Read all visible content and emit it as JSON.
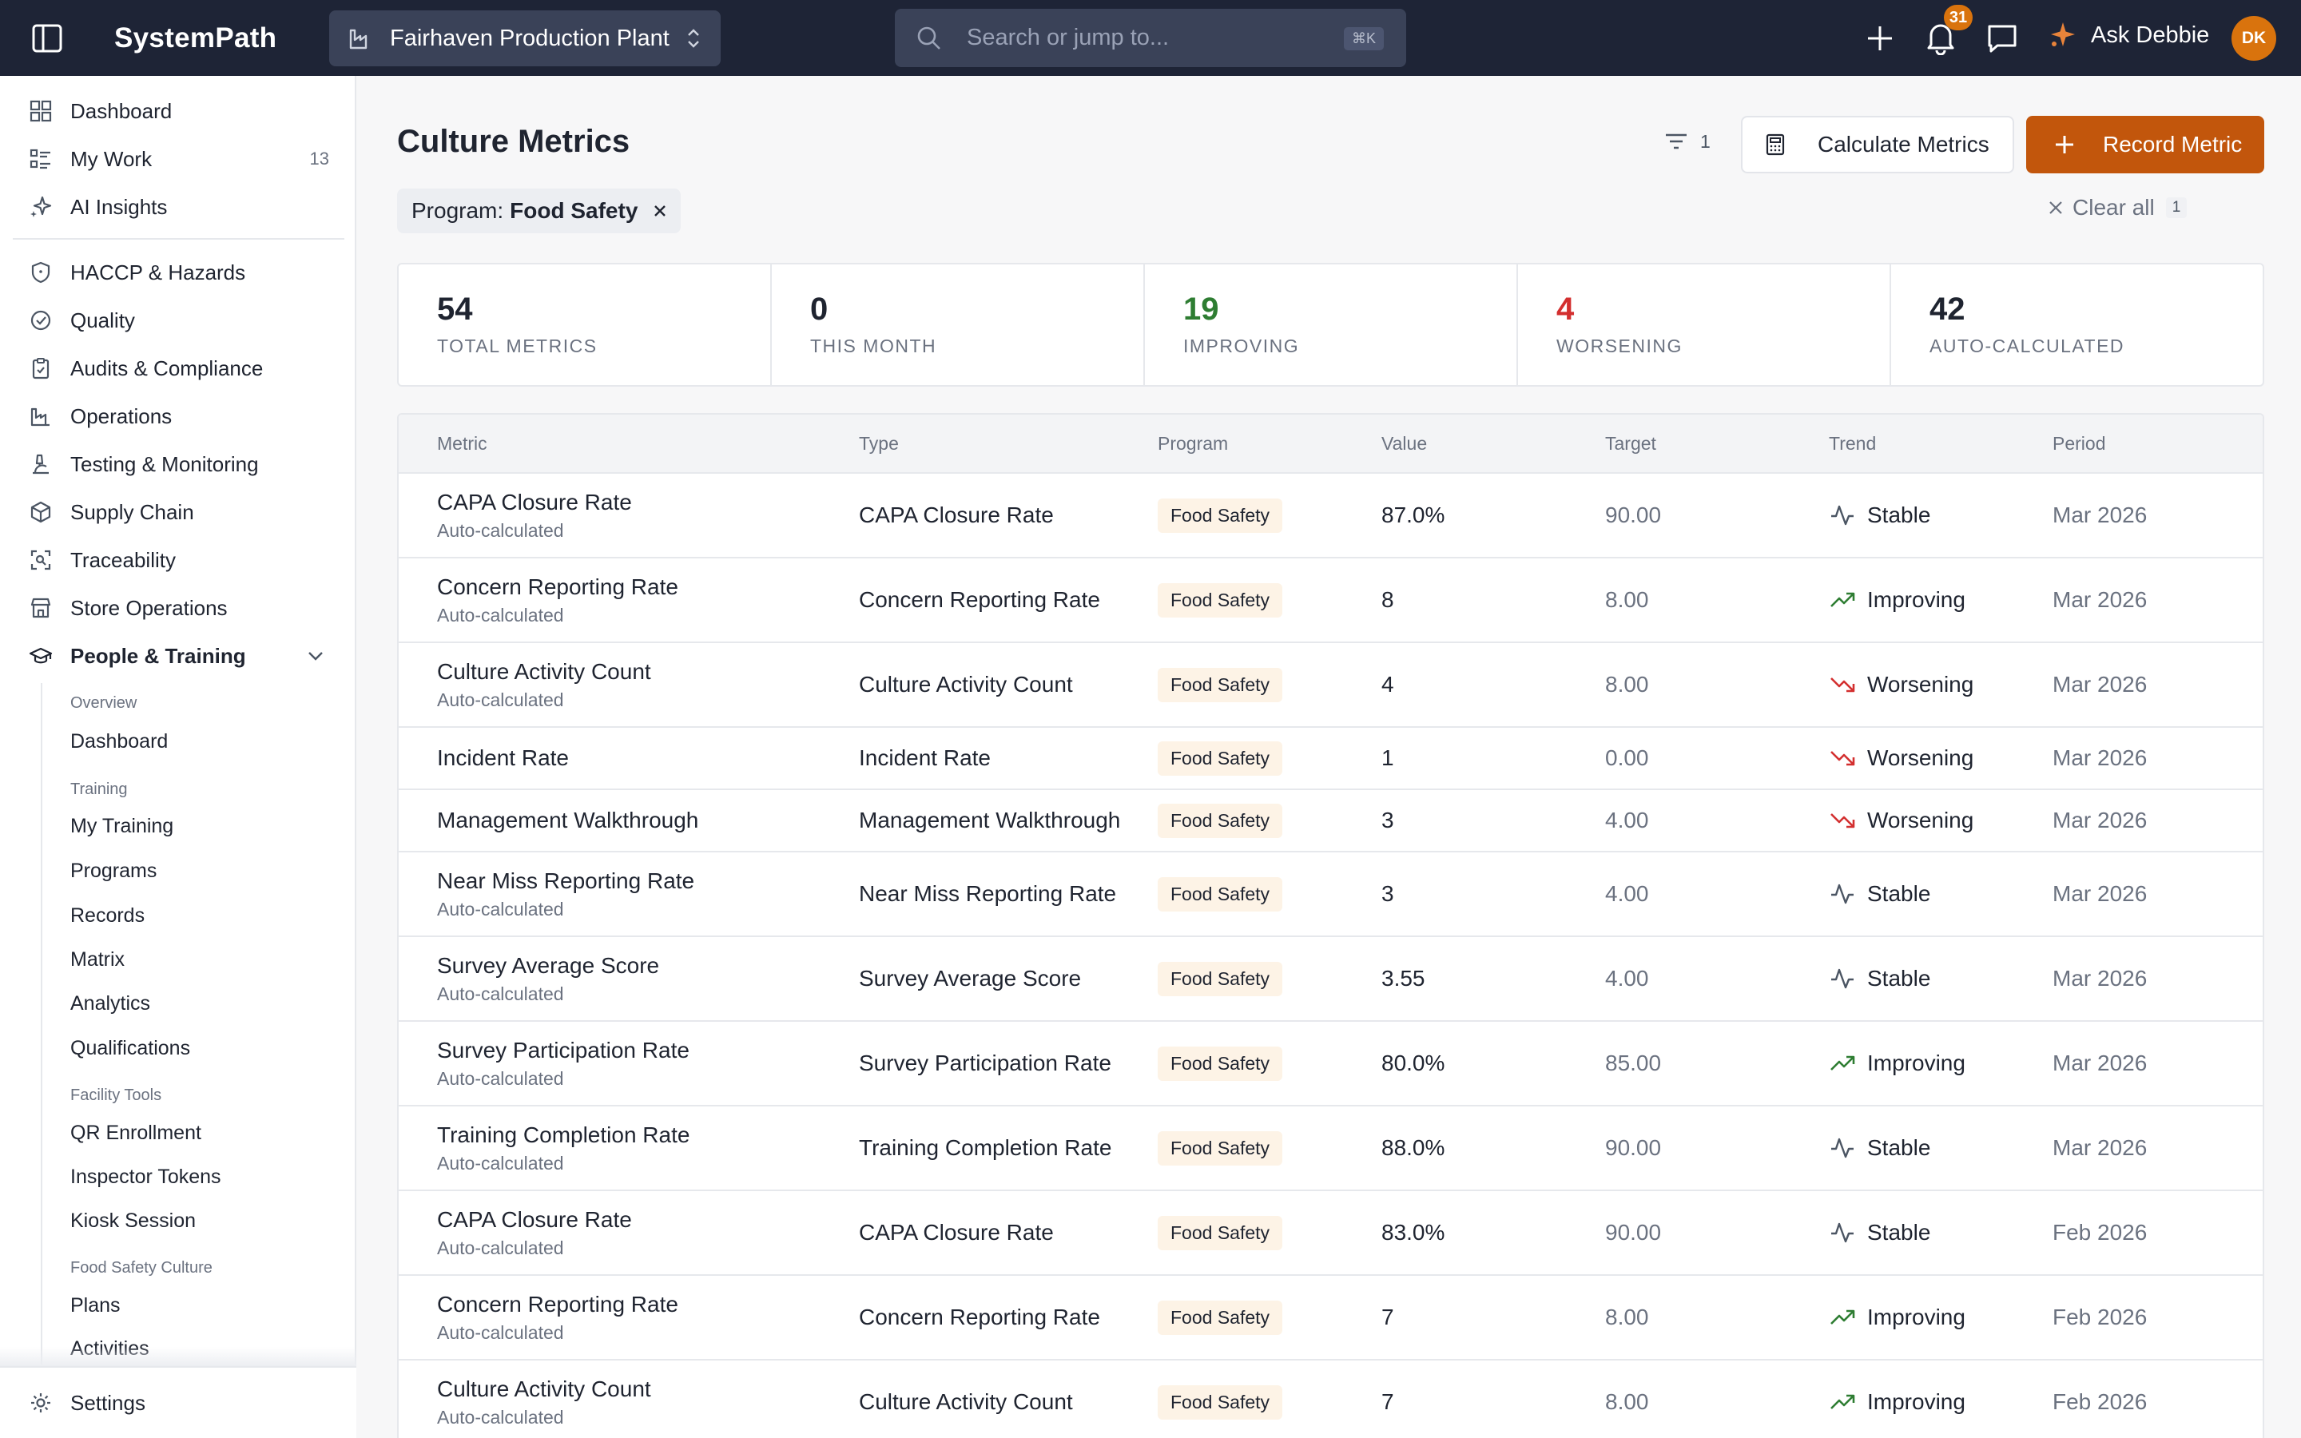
{
  "topbar": {
    "brand": "SystemPath",
    "site": "Fairhaven Production Plant",
    "search_placeholder": "Search or jump to...",
    "search_shortcut": "⌘K",
    "notifications_count": "31",
    "assistant_label": "Ask Debbie",
    "avatar_initials": "DK"
  },
  "sidebar": {
    "top": [
      {
        "label": "Dashboard",
        "icon": "grid-icon"
      },
      {
        "label": "My Work",
        "icon": "checklist-icon",
        "count": "13"
      },
      {
        "label": "AI Insights",
        "icon": "sparkle-icon"
      }
    ],
    "modules": [
      {
        "label": "HACCP & Hazards",
        "icon": "shield-icon"
      },
      {
        "label": "Quality",
        "icon": "check-circle-icon"
      },
      {
        "label": "Audits & Compliance",
        "icon": "clipboard-icon"
      },
      {
        "label": "Operations",
        "icon": "factory-icon"
      },
      {
        "label": "Testing & Monitoring",
        "icon": "microscope-icon"
      },
      {
        "label": "Supply Chain",
        "icon": "box-icon"
      },
      {
        "label": "Traceability",
        "icon": "scan-icon"
      },
      {
        "label": "Store Operations",
        "icon": "store-icon"
      },
      {
        "label": "People & Training",
        "icon": "graduation-cap-icon"
      }
    ],
    "sub_sections": {
      "overview_heading": "Overview",
      "overview_items": [
        "Dashboard"
      ],
      "training_heading": "Training",
      "training_items": [
        "My Training",
        "Programs",
        "Records",
        "Matrix",
        "Analytics",
        "Qualifications"
      ],
      "facility_heading": "Facility Tools",
      "facility_items": [
        "QR Enrollment",
        "Inspector Tokens",
        "Kiosk Session"
      ],
      "culture_heading": "Food Safety Culture",
      "culture_items": [
        "Plans",
        "Activities"
      ]
    },
    "settings_label": "Settings"
  },
  "page": {
    "title": "Culture Metrics",
    "filter_count": "1",
    "calculate_label": "Calculate Metrics",
    "record_label": "Record Metric",
    "chip_key": "Program:",
    "chip_value": "Food Safety",
    "clear_all_label": "Clear all",
    "clear_all_count": "1"
  },
  "stats": [
    {
      "value": "54",
      "label": "TOTAL METRICS",
      "color": "#1f2430"
    },
    {
      "value": "0",
      "label": "THIS MONTH",
      "color": "#1f2430"
    },
    {
      "value": "19",
      "label": "IMPROVING",
      "color": "#2e7d32"
    },
    {
      "value": "4",
      "label": "WORSENING",
      "color": "#d32f2f"
    },
    {
      "value": "42",
      "label": "AUTO-CALCULATED",
      "color": "#1f2430"
    }
  ],
  "table": {
    "columns": [
      "Metric",
      "Type",
      "Program",
      "Value",
      "Target",
      "Trend",
      "Period"
    ],
    "rows": [
      {
        "metric": "CAPA Closure Rate",
        "sub": "Auto-calculated",
        "type": "CAPA Closure Rate",
        "program": "Food Safety",
        "value": "87.0%",
        "target": "90.00",
        "trend": "Stable",
        "period": "Mar 2026"
      },
      {
        "metric": "Concern Reporting Rate",
        "sub": "Auto-calculated",
        "type": "Concern Reporting Rate",
        "program": "Food Safety",
        "value": "8",
        "target": "8.00",
        "trend": "Improving",
        "period": "Mar 2026"
      },
      {
        "metric": "Culture Activity Count",
        "sub": "Auto-calculated",
        "type": "Culture Activity Count",
        "program": "Food Safety",
        "value": "4",
        "target": "8.00",
        "trend": "Worsening",
        "period": "Mar 2026"
      },
      {
        "metric": "Incident Rate",
        "sub": "",
        "type": "Incident Rate",
        "program": "Food Safety",
        "value": "1",
        "target": "0.00",
        "trend": "Worsening",
        "period": "Mar 2026"
      },
      {
        "metric": "Management Walkthrough",
        "sub": "",
        "type": "Management Walkthrough",
        "program": "Food Safety",
        "value": "3",
        "target": "4.00",
        "trend": "Worsening",
        "period": "Mar 2026"
      },
      {
        "metric": "Near Miss Reporting Rate",
        "sub": "Auto-calculated",
        "type": "Near Miss Reporting Rate",
        "program": "Food Safety",
        "value": "3",
        "target": "4.00",
        "trend": "Stable",
        "period": "Mar 2026"
      },
      {
        "metric": "Survey Average Score",
        "sub": "Auto-calculated",
        "type": "Survey Average Score",
        "program": "Food Safety",
        "value": "3.55",
        "target": "4.00",
        "trend": "Stable",
        "period": "Mar 2026"
      },
      {
        "metric": "Survey Participation Rate",
        "sub": "Auto-calculated",
        "type": "Survey Participation Rate",
        "program": "Food Safety",
        "value": "80.0%",
        "target": "85.00",
        "trend": "Improving",
        "period": "Mar 2026"
      },
      {
        "metric": "Training Completion Rate",
        "sub": "Auto-calculated",
        "type": "Training Completion Rate",
        "program": "Food Safety",
        "value": "88.0%",
        "target": "90.00",
        "trend": "Stable",
        "period": "Mar 2026"
      },
      {
        "metric": "CAPA Closure Rate",
        "sub": "Auto-calculated",
        "type": "CAPA Closure Rate",
        "program": "Food Safety",
        "value": "83.0%",
        "target": "90.00",
        "trend": "Stable",
        "period": "Feb 2026"
      },
      {
        "metric": "Concern Reporting Rate",
        "sub": "Auto-calculated",
        "type": "Concern Reporting Rate",
        "program": "Food Safety",
        "value": "7",
        "target": "8.00",
        "trend": "Improving",
        "period": "Feb 2026"
      },
      {
        "metric": "Culture Activity Count",
        "sub": "Auto-calculated",
        "type": "Culture Activity Count",
        "program": "Food Safety",
        "value": "7",
        "target": "8.00",
        "trend": "Improving",
        "period": "Feb 2026"
      }
    ]
  },
  "colors": {
    "topbar_bg": "#1e2436",
    "accent": "#c2560c",
    "improving": "#2e7d32",
    "worsening": "#d32f2f",
    "badge_bg": "#fdf3e6"
  }
}
